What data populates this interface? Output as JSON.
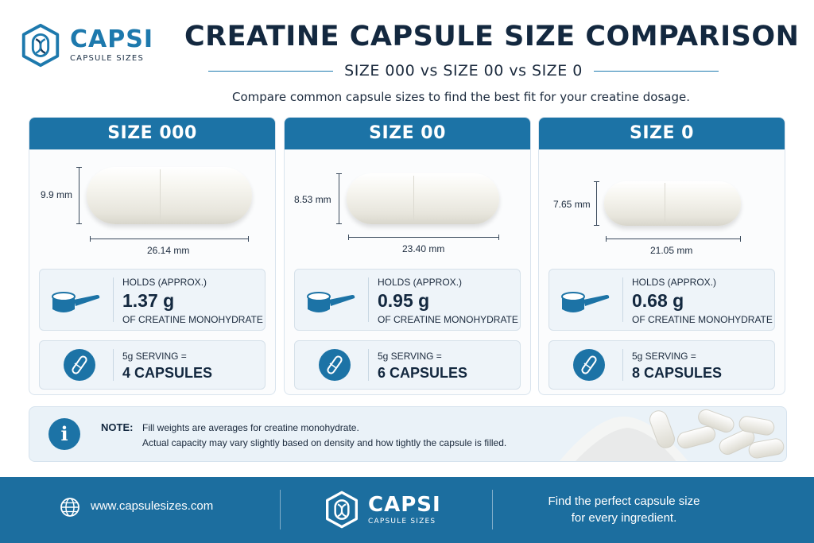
{
  "brand": {
    "name": "CAPSI",
    "sub": "CAPSULE SIZES"
  },
  "header": {
    "title": "CREATINE CAPSULE SIZE COMPARISON",
    "subtitle": "SIZE 000 vs SIZE 00 vs SIZE 0",
    "tagline": "Compare common capsule sizes to find the best fit for your creatine dosage."
  },
  "cards": [
    {
      "title": "SIZE 000",
      "height": "9.9 mm",
      "length": "26.14 mm",
      "holds_label": "HOLDS (APPROX.)",
      "holds_value": "1.37 g",
      "holds_unit": "OF CREATINE MONOHYDRATE",
      "serving_label": "5g SERVING =",
      "serving_value": "4 CAPSULES"
    },
    {
      "title": "SIZE 00",
      "height": "8.53 mm",
      "length": "23.40 mm",
      "holds_label": "HOLDS (APPROX.)",
      "holds_value": "0.95 g",
      "holds_unit": "OF CREATINE MONOHYDRATE",
      "serving_label": "5g SERVING =",
      "serving_value": "6 CAPSULES"
    },
    {
      "title": "SIZE 0",
      "height": "7.65 mm",
      "length": "21.05 mm",
      "holds_label": "HOLDS (APPROX.)",
      "holds_value": "0.68 g",
      "holds_unit": "OF CREATINE MONOHYDRATE",
      "serving_label": "5g SERVING =",
      "serving_value": "8 CAPSULES"
    }
  ],
  "note": {
    "label": "NOTE:",
    "line1": "Fill weights are averages for creatine monohydrate.",
    "line2": "Actual capacity may vary slightly based on density and how tightly the capsule is filled."
  },
  "footer": {
    "url": "www.capsulesizes.com",
    "brand_name": "CAPSI",
    "brand_sub": "CAPSULE SIZES",
    "tagline_line1": "Find the perfect capsule size",
    "tagline_line2": "for every ingredient."
  },
  "colors": {
    "primary": "#1c73a6",
    "footer": "#1c6e9f",
    "dark_text": "#13283f",
    "panel": "#eef4f9"
  },
  "icons": [
    "capsi-logo-icon",
    "scoop-icon",
    "capsule-icon",
    "info-icon",
    "globe-icon"
  ]
}
